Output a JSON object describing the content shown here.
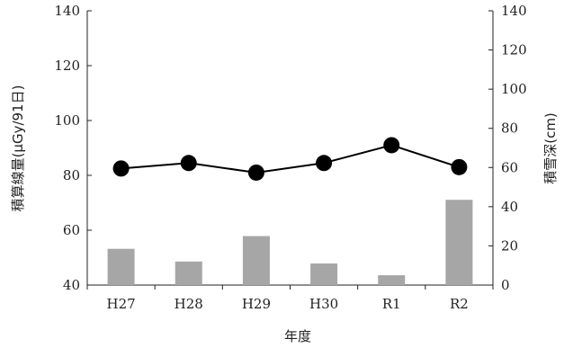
{
  "chart_data": {
    "type": "bar",
    "categories": [
      "H27",
      "H28",
      "H29",
      "H30",
      "R1",
      "R2"
    ],
    "series": [
      {
        "kind": "line",
        "axis": "left",
        "values": [
          82.5,
          84.5,
          81,
          84.5,
          91,
          83
        ],
        "color": "#000000"
      },
      {
        "kind": "bar",
        "axis": "right",
        "values": [
          18.5,
          12,
          25,
          11,
          5,
          43.5
        ],
        "color": "#a6a6a6"
      }
    ],
    "xlabel": "年度",
    "ylabel": "積算線量(μGy/91日)",
    "ylabel_right": "積雪深(cm)",
    "ylim": [
      40,
      140
    ],
    "ylim_right": [
      0,
      140
    ],
    "yticks": [
      40,
      60,
      80,
      100,
      120,
      140
    ],
    "yticks_right": [
      0,
      20,
      40,
      60,
      80,
      100,
      120,
      140
    ],
    "grid": false,
    "legend": "none"
  }
}
